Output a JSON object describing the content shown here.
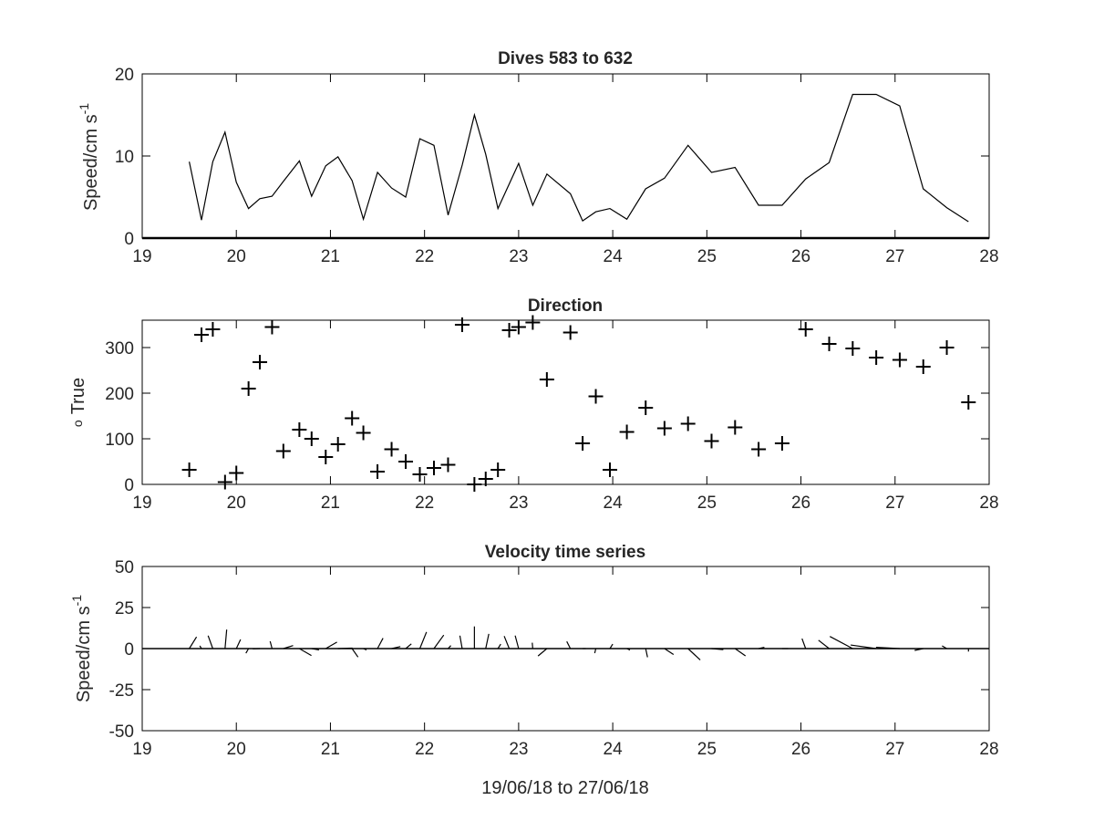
{
  "figure": {
    "background": "#ffffff",
    "line_color": "#000000",
    "text_color": "#262626"
  },
  "chart_data": [
    {
      "type": "line",
      "title": "Dives 583 to 632",
      "ylabel_main": "Speed/cm s",
      "ylabel_sup": "-1",
      "xlabel": "",
      "xlim": [
        19,
        28
      ],
      "ylim": [
        0,
        20
      ],
      "xticks": [
        19,
        20,
        21,
        22,
        23,
        24,
        25,
        26,
        27,
        28
      ],
      "yticks": [
        0,
        10,
        20
      ],
      "x": [
        19.5,
        19.63,
        19.75,
        19.88,
        20.0,
        20.13,
        20.25,
        20.38,
        20.5,
        20.67,
        20.8,
        20.95,
        21.08,
        21.23,
        21.35,
        21.5,
        21.65,
        21.8,
        21.95,
        22.1,
        22.25,
        22.4,
        22.53,
        22.65,
        22.78,
        23.0,
        23.15,
        23.3,
        23.55,
        23.68,
        23.82,
        23.97,
        24.15,
        24.35,
        24.55,
        24.8,
        25.05,
        25.3,
        25.55,
        25.8,
        26.05,
        26.3,
        26.55,
        26.8,
        27.05,
        27.3,
        27.55,
        27.78
      ],
      "y": [
        9.3,
        2.2,
        9.3,
        12.9,
        6.8,
        3.6,
        4.8,
        5.1,
        6.9,
        9.4,
        5.1,
        8.8,
        9.9,
        7.0,
        2.3,
        8.0,
        6.1,
        5.0,
        12.1,
        11.3,
        2.8,
        8.9,
        15.0,
        10.2,
        3.6,
        9.1,
        4.0,
        7.8,
        5.4,
        2.1,
        3.2,
        3.6,
        2.3,
        6.0,
        7.3,
        11.3,
        8.0,
        8.6,
        4.0,
        4.0,
        7.2,
        9.2,
        17.5,
        17.5,
        16.1,
        6.0,
        3.7,
        2.0
      ]
    },
    {
      "type": "scatter",
      "title": "Direction",
      "ylabel_main": "True",
      "ylabel_sup": "o",
      "xlabel": "",
      "xlim": [
        19,
        28
      ],
      "ylim": [
        0,
        360
      ],
      "xticks": [
        19,
        20,
        21,
        22,
        23,
        24,
        25,
        26,
        27,
        28
      ],
      "yticks": [
        0,
        100,
        200,
        300
      ],
      "marker": "plus",
      "x": [
        19.5,
        19.63,
        19.75,
        19.88,
        20.0,
        20.13,
        20.25,
        20.38,
        20.5,
        20.67,
        20.8,
        20.95,
        21.08,
        21.23,
        21.35,
        21.5,
        21.65,
        21.8,
        21.95,
        22.1,
        22.25,
        22.4,
        22.53,
        22.65,
        22.78,
        22.9,
        23.0,
        23.15,
        23.3,
        23.55,
        23.68,
        23.82,
        23.97,
        24.15,
        24.35,
        24.55,
        24.8,
        25.05,
        25.3,
        25.55,
        25.8,
        26.05,
        26.3,
        26.55,
        26.8,
        27.05,
        27.3,
        27.55,
        27.78
      ],
      "y": [
        32,
        328,
        340,
        5,
        25,
        210,
        268,
        345,
        73,
        120,
        100,
        60,
        88,
        145,
        113,
        28,
        77,
        50,
        22,
        36,
        43,
        350,
        0,
        12,
        32,
        338,
        345,
        355,
        230,
        333,
        90,
        193,
        32,
        115,
        168,
        123,
        133,
        95,
        125,
        77,
        90,
        340,
        308,
        298,
        278,
        273,
        258,
        300,
        180
      ]
    },
    {
      "type": "quiver",
      "title": "Velocity time series",
      "ylabel_main": "Speed/cm s",
      "ylabel_sup": "-1",
      "xlabel": "19/06/18 to 27/06/18",
      "xlim": [
        19,
        28
      ],
      "ylim": [
        -50,
        50
      ],
      "xticks": [
        19,
        20,
        21,
        22,
        23,
        24,
        25,
        26,
        27,
        28
      ],
      "yticks": [
        -50,
        -25,
        0,
        25,
        50
      ],
      "note": "stick plot from speed and direction series"
    }
  ]
}
